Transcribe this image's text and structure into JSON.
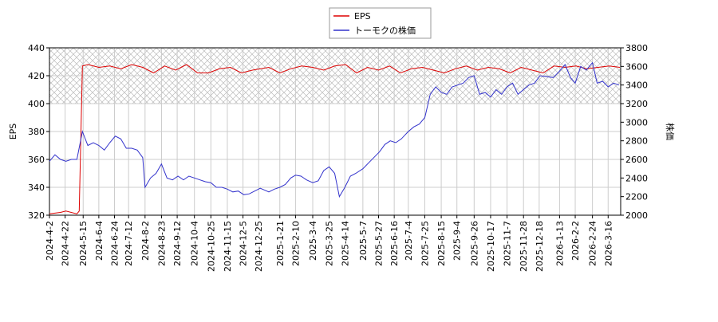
{
  "chart_data": {
    "type": "line",
    "ylabel": "EPS",
    "y2label": "株価",
    "xlim": [
      "2024-4-2",
      "2026-4-1"
    ],
    "xticks": [
      "2024-4-2",
      "2024-4-22",
      "2024-5-15",
      "2024-6-4",
      "2024-6-24",
      "2024-7-12",
      "2024-8-2",
      "2024-8-23",
      "2024-9-12",
      "2024-10-4",
      "2024-10-25",
      "2024-11-15",
      "2024-12-5",
      "2024-12-25",
      "2025-1-21",
      "2025-2-10",
      "2025-3-4",
      "2025-3-25",
      "2025-4-14",
      "2025-5-7",
      "2025-5-27",
      "2025-6-16",
      "2025-7-4",
      "2025-7-25",
      "2025-8-15",
      "2025-9-4",
      "2025-9-26",
      "2025-10-17",
      "2025-11-7",
      "2025-11-28",
      "2025-12-18",
      "2026-1-13",
      "2026-2-2",
      "2026-2-24",
      "2026-3-16"
    ],
    "ylim": [
      320,
      440
    ],
    "yticks": [
      320,
      340,
      360,
      380,
      400,
      420,
      440
    ],
    "y2lim": [
      2000,
      3800
    ],
    "y2ticks": [
      2000,
      2200,
      2400,
      2600,
      2800,
      3000,
      3200,
      3400,
      3600,
      3800
    ],
    "shaded_ylim": [
      400,
      440
    ],
    "grid": true,
    "legend": "top",
    "series": [
      {
        "name": "EPS",
        "color": "#dd0000",
        "x": [
          "2024-4-2",
          "2024-4-16",
          "2024-4-23",
          "2024-5-7",
          "2024-5-10",
          "2024-5-14",
          "2024-5-21",
          "2024-6-4",
          "2024-6-18",
          "2024-7-2",
          "2024-7-16",
          "2024-7-30",
          "2024-8-13",
          "2024-8-27",
          "2024-9-10",
          "2024-9-24",
          "2024-10-8",
          "2024-10-22",
          "2024-11-5",
          "2024-11-19",
          "2024-12-3",
          "2024-12-17",
          "2025-1-7",
          "2025-1-21",
          "2025-2-4",
          "2025-2-18",
          "2025-3-4",
          "2025-3-18",
          "2025-4-1",
          "2025-4-15",
          "2025-4-29",
          "2025-5-13",
          "2025-5-27",
          "2025-6-10",
          "2025-6-24",
          "2025-7-8",
          "2025-7-22",
          "2025-8-5",
          "2025-8-19",
          "2025-9-2",
          "2025-9-16",
          "2025-9-30",
          "2025-10-14",
          "2025-10-28",
          "2025-11-11",
          "2025-11-25",
          "2025-12-9",
          "2025-12-23",
          "2026-1-6",
          "2026-1-20",
          "2026-2-3",
          "2026-2-17",
          "2026-3-3",
          "2026-3-17",
          "2026-3-31"
        ],
        "values": [
          321,
          322,
          323,
          321,
          323,
          427,
          428,
          426,
          427,
          425,
          428,
          426,
          422,
          427,
          424,
          428,
          422,
          422,
          425,
          426,
          422,
          424,
          426,
          422,
          425,
          427,
          426,
          424,
          427,
          428,
          422,
          426,
          424,
          427,
          422,
          425,
          426,
          424,
          422,
          425,
          427,
          424,
          426,
          425,
          422,
          426,
          424,
          422,
          427,
          426,
          427,
          425,
          426,
          427,
          426
        ]
      },
      {
        "name": "トーモクの株価",
        "color": "#3333cc",
        "axis": "y2",
        "x": [
          "2024-4-2",
          "2024-4-9",
          "2024-4-16",
          "2024-4-23",
          "2024-4-30",
          "2024-5-7",
          "2024-5-14",
          "2024-5-21",
          "2024-5-28",
          "2024-6-4",
          "2024-6-11",
          "2024-6-18",
          "2024-6-25",
          "2024-7-2",
          "2024-7-9",
          "2024-7-16",
          "2024-7-23",
          "2024-7-30",
          "2024-8-2",
          "2024-8-9",
          "2024-8-16",
          "2024-8-23",
          "2024-8-30",
          "2024-9-6",
          "2024-9-13",
          "2024-9-20",
          "2024-9-27",
          "2024-10-4",
          "2024-10-11",
          "2024-10-18",
          "2024-10-25",
          "2024-11-1",
          "2024-11-8",
          "2024-11-15",
          "2024-11-22",
          "2024-11-29",
          "2024-12-6",
          "2024-12-13",
          "2024-12-20",
          "2024-12-27",
          "2025-1-7",
          "2025-1-14",
          "2025-1-21",
          "2025-1-28",
          "2025-2-4",
          "2025-2-10",
          "2025-2-17",
          "2025-2-24",
          "2025-3-4",
          "2025-3-11",
          "2025-3-18",
          "2025-3-25",
          "2025-4-1",
          "2025-4-7",
          "2025-4-14",
          "2025-4-21",
          "2025-4-28",
          "2025-5-7",
          "2025-5-14",
          "2025-5-21",
          "2025-5-28",
          "2025-6-4",
          "2025-6-11",
          "2025-6-18",
          "2025-6-25",
          "2025-7-4",
          "2025-7-11",
          "2025-7-18",
          "2025-7-25",
          "2025-8-1",
          "2025-8-8",
          "2025-8-15",
          "2025-8-22",
          "2025-8-29",
          "2025-9-5",
          "2025-9-12",
          "2025-9-19",
          "2025-9-26",
          "2025-10-3",
          "2025-10-10",
          "2025-10-17",
          "2025-10-24",
          "2025-10-31",
          "2025-11-7",
          "2025-11-14",
          "2025-11-21",
          "2025-11-28",
          "2025-12-5",
          "2025-12-12",
          "2025-12-19",
          "2026-1-5",
          "2026-1-13",
          "2026-1-20",
          "2026-1-27",
          "2026-2-2",
          "2026-2-9",
          "2026-2-16",
          "2026-2-24",
          "2026-3-2",
          "2026-3-9",
          "2026-3-16",
          "2026-3-23",
          "2026-3-30"
        ],
        "values": [
          2580,
          2650,
          2600,
          2580,
          2600,
          2600,
          2900,
          2750,
          2780,
          2750,
          2700,
          2780,
          2850,
          2820,
          2720,
          2720,
          2700,
          2620,
          2300,
          2400,
          2450,
          2550,
          2400,
          2380,
          2420,
          2380,
          2420,
          2400,
          2380,
          2360,
          2350,
          2300,
          2300,
          2280,
          2250,
          2260,
          2220,
          2230,
          2260,
          2290,
          2250,
          2280,
          2300,
          2330,
          2400,
          2430,
          2420,
          2380,
          2350,
          2370,
          2480,
          2520,
          2450,
          2200,
          2300,
          2420,
          2450,
          2500,
          2560,
          2620,
          2680,
          2760,
          2800,
          2780,
          2820,
          2900,
          2950,
          2980,
          3050,
          3300,
          3380,
          3320,
          3300,
          3380,
          3400,
          3420,
          3480,
          3500,
          3300,
          3320,
          3270,
          3350,
          3300,
          3380,
          3420,
          3300,
          3350,
          3400,
          3420,
          3500,
          3480,
          3550,
          3620,
          3480,
          3420,
          3600,
          3560,
          3640,
          3420,
          3440,
          3380,
          3420,
          3400
        ]
      }
    ]
  }
}
